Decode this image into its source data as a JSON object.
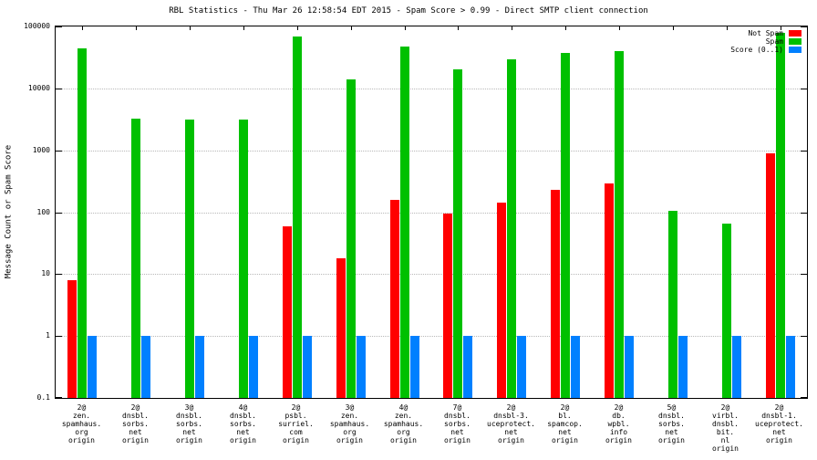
{
  "chart_data": {
    "type": "bar",
    "title": "RBL Statistics - Thu Mar 26 12:58:54 EDT 2015 - Spam Score > 0.99 - Direct SMTP client connection",
    "ylabel": "Message Count or Spam Score",
    "xlabel": "",
    "scale": "log",
    "grid": true,
    "legend_position": "top-right",
    "ylim": [
      0.1,
      100000
    ],
    "yticks": [
      0.1,
      1,
      10,
      100,
      1000,
      10000,
      100000
    ],
    "ytick_labels": [
      "0.1",
      "1",
      "10",
      "100",
      "1000",
      "10000",
      "100000"
    ],
    "categories": [
      [
        "2@",
        "zen.",
        "spamhaus.",
        "org",
        "origin"
      ],
      [
        "2@",
        "dnsbl.",
        "sorbs.",
        "net",
        "origin"
      ],
      [
        "3@",
        "dnsbl.",
        "sorbs.",
        "net",
        "origin"
      ],
      [
        "4@",
        "dnsbl.",
        "sorbs.",
        "net",
        "origin"
      ],
      [
        "2@",
        "psbl.",
        "surriel.",
        "com",
        "origin"
      ],
      [
        "3@",
        "zen.",
        "spamhaus.",
        "org",
        "origin"
      ],
      [
        "4@",
        "zen.",
        "spamhaus.",
        "org",
        "origin"
      ],
      [
        "7@",
        "dnsbl.",
        "sorbs.",
        "net",
        "origin"
      ],
      [
        "2@",
        "dnsbl-3.",
        "uceprotect.",
        "net",
        "origin"
      ],
      [
        "2@",
        "bl.",
        "spamcop.",
        "net",
        "origin"
      ],
      [
        "2@",
        "db.",
        "wpbl.",
        "info",
        "origin"
      ],
      [
        "5@",
        "dnsbl.",
        "sorbs.",
        "net",
        "origin"
      ],
      [
        "2@",
        "virbl.",
        "dnsbl.",
        "bit.",
        "nl",
        "origin"
      ],
      [
        "2@",
        "dnsbl-1.",
        "uceprotect.",
        "net",
        "origin"
      ]
    ],
    "series": [
      {
        "name": "Not Spam",
        "color": "#ff0000",
        "values": [
          8,
          0,
          0,
          0,
          60,
          18,
          160,
          95,
          145,
          230,
          290,
          0,
          0,
          900
        ]
      },
      {
        "name": "Spam",
        "color": "#00c000",
        "values": [
          45000,
          3200,
          3100,
          3100,
          70000,
          14000,
          48000,
          20000,
          29000,
          38000,
          40000,
          105,
          65,
          80000
        ]
      },
      {
        "name": "Score (0..1)",
        "color": "#0080ff",
        "values": [
          1,
          1,
          1,
          1,
          1,
          1,
          1,
          1,
          1,
          1,
          1,
          1,
          1,
          1
        ]
      }
    ]
  }
}
